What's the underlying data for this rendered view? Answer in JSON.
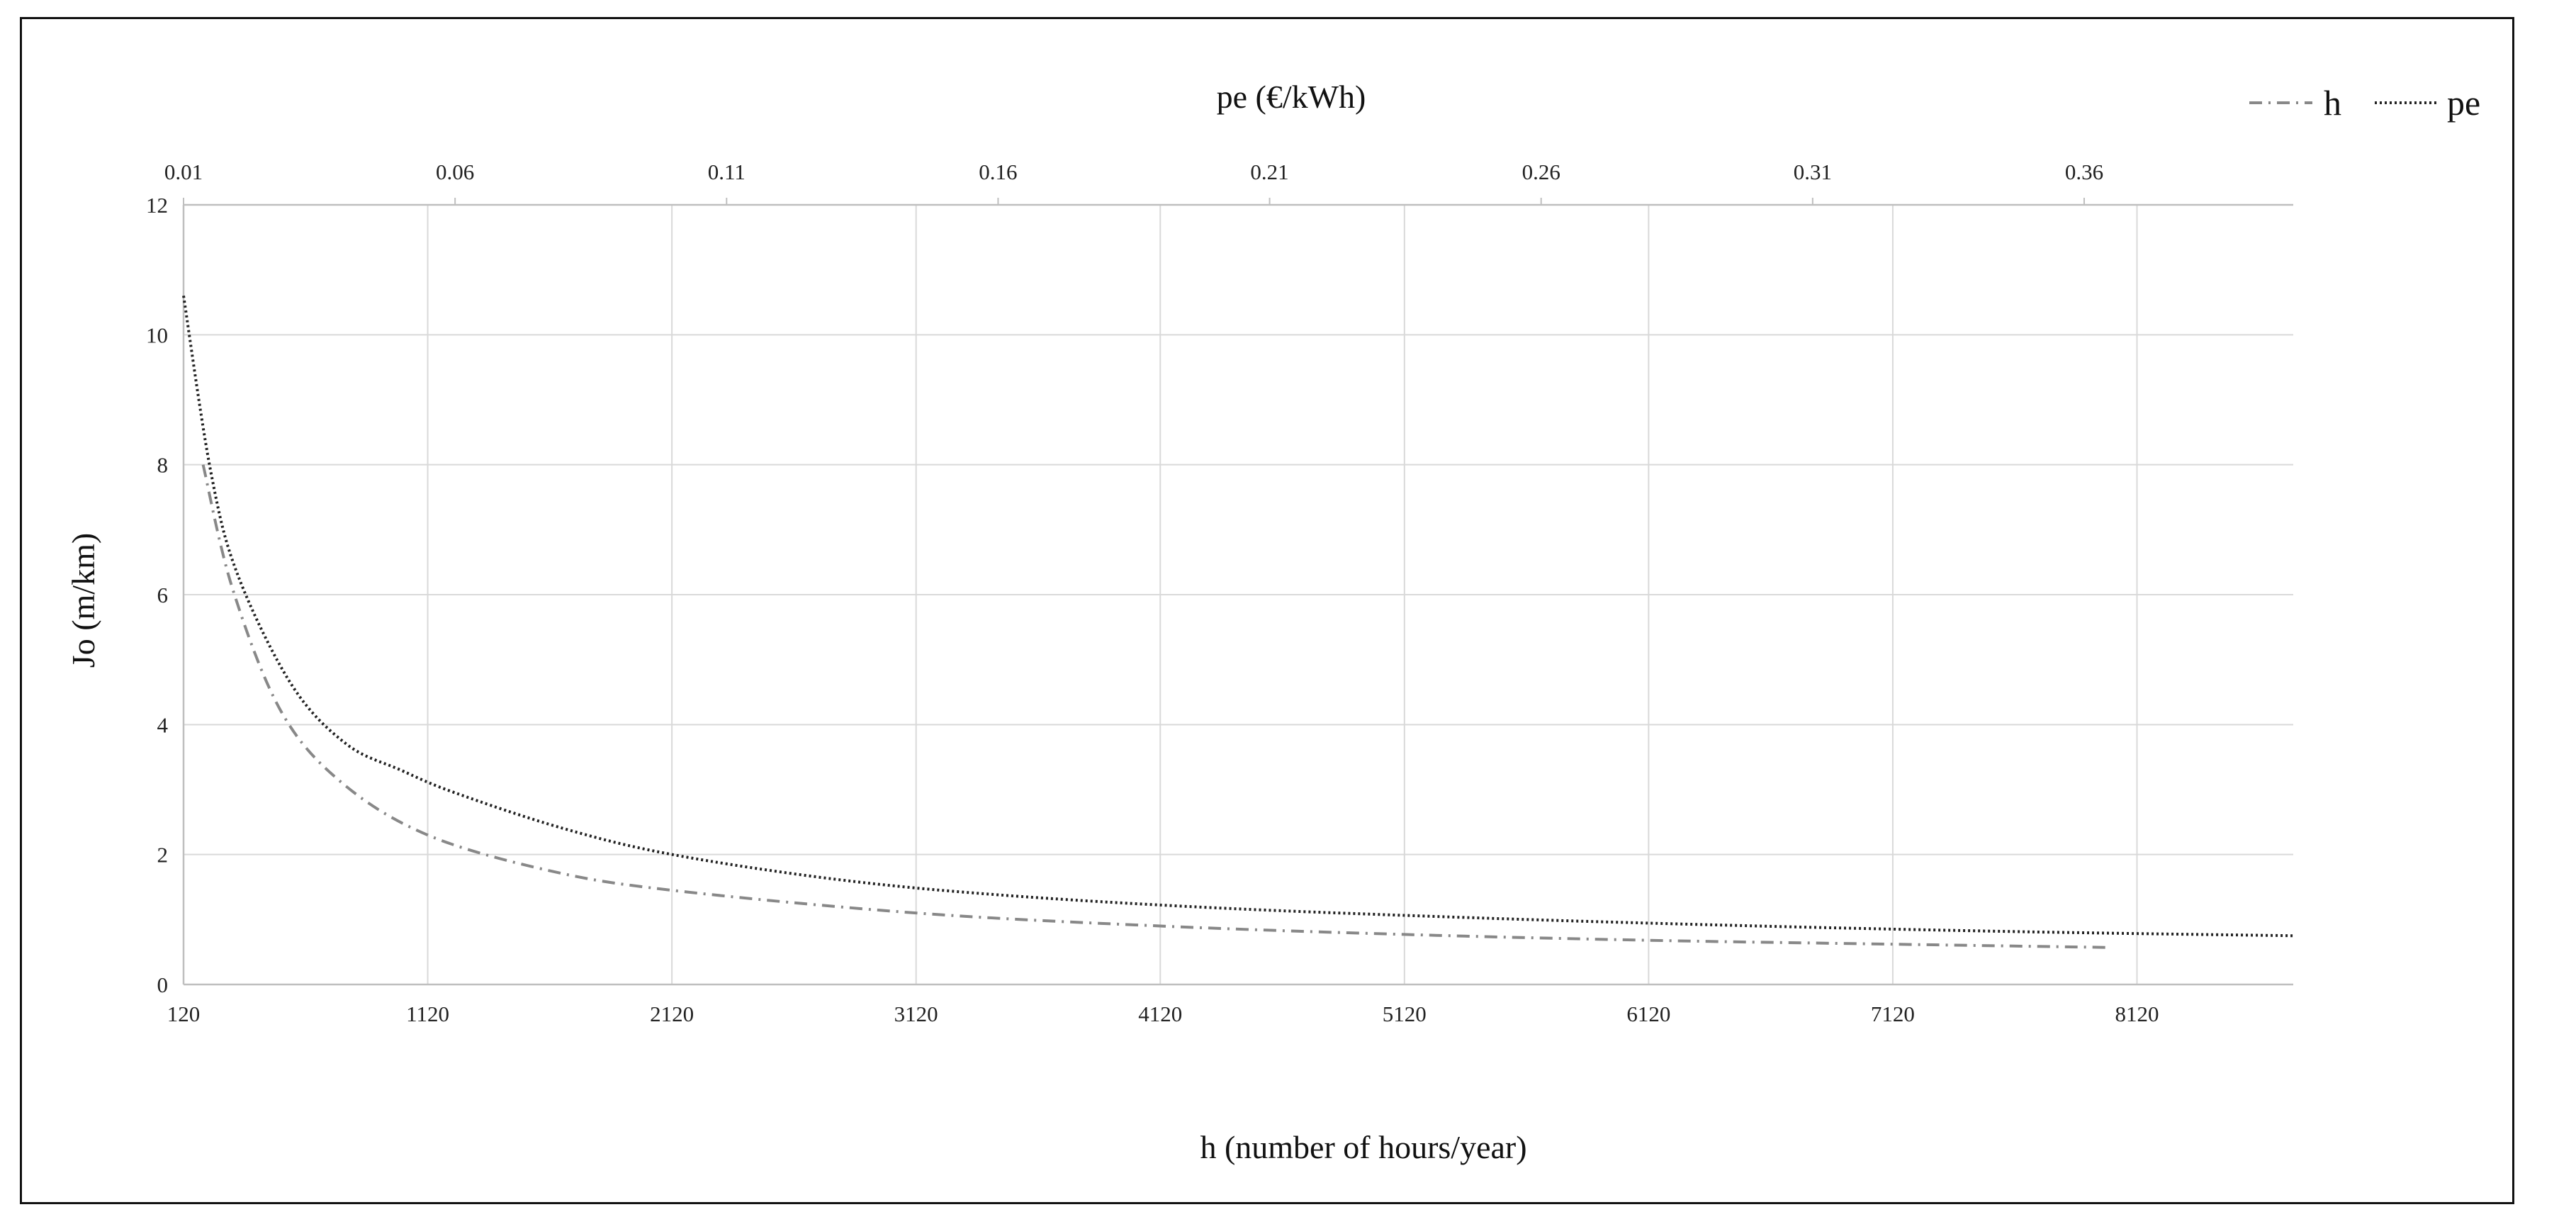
{
  "chart_data": {
    "type": "line",
    "title": "",
    "xlabel": "h (number of hours/year)",
    "x2label": "pe (€/kWh)",
    "ylabel": "Jo (m/km)",
    "xlim": [
      120,
      8760
    ],
    "x2lim": [
      0.01,
      0.3985
    ],
    "ylim": [
      0,
      12
    ],
    "xticks": [
      "120",
      "1120",
      "2120",
      "3120",
      "4120",
      "5120",
      "6120",
      "7120",
      "8120"
    ],
    "x2ticks": [
      "0.01",
      "0.06",
      "0.11",
      "0.16",
      "0.21",
      "0.26",
      "0.31",
      "0.36"
    ],
    "yticks": [
      "0",
      "2",
      "4",
      "6",
      "8",
      "10",
      "12"
    ],
    "grid": true,
    "legend_position": "top-right",
    "series": [
      {
        "name": "h",
        "axis": "bottom",
        "style": "dash-dot",
        "color": "#888888",
        "x": [
          200,
          320,
          520,
          770,
          1120,
          1620,
          2120,
          3120,
          4120,
          5120,
          6120,
          7120,
          8000
        ],
        "y": [
          8.0,
          6.1,
          4.2,
          3.1,
          2.3,
          1.75,
          1.45,
          1.1,
          0.9,
          0.77,
          0.68,
          0.62,
          0.57
        ]
      },
      {
        "name": "pe",
        "axis": "top",
        "style": "dotted",
        "color": "#222222",
        "x": [
          0.01,
          0.015,
          0.02,
          0.03,
          0.04,
          0.05,
          0.06,
          0.08,
          0.1,
          0.13,
          0.16,
          0.2,
          0.25,
          0.3,
          0.35,
          0.3985
        ],
        "y": [
          10.6,
          7.9,
          6.3,
          4.6,
          3.7,
          3.3,
          2.95,
          2.4,
          2.0,
          1.62,
          1.38,
          1.18,
          1.02,
          0.9,
          0.81,
          0.75
        ]
      }
    ]
  }
}
